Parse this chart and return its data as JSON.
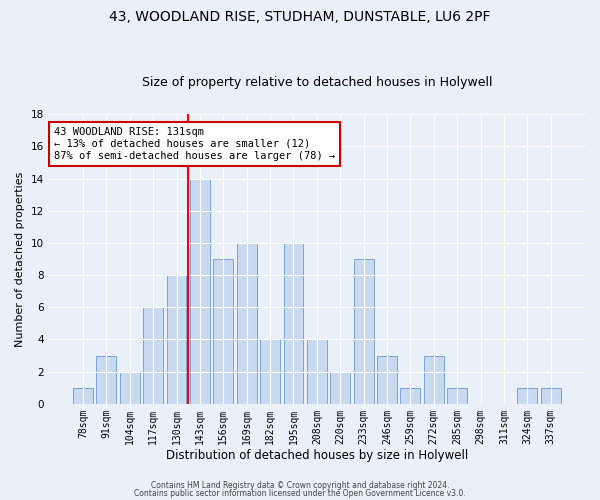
{
  "title1": "43, WOODLAND RISE, STUDHAM, DUNSTABLE, LU6 2PF",
  "title2": "Size of property relative to detached houses in Holywell",
  "xlabel": "Distribution of detached houses by size in Holywell",
  "ylabel": "Number of detached properties",
  "categories": [
    "78sqm",
    "91sqm",
    "104sqm",
    "117sqm",
    "130sqm",
    "143sqm",
    "156sqm",
    "169sqm",
    "182sqm",
    "195sqm",
    "208sqm",
    "220sqm",
    "233sqm",
    "246sqm",
    "259sqm",
    "272sqm",
    "285sqm",
    "298sqm",
    "311sqm",
    "324sqm",
    "337sqm"
  ],
  "values": [
    1,
    3,
    2,
    6,
    8,
    14,
    9,
    10,
    4,
    10,
    4,
    2,
    9,
    3,
    1,
    3,
    1,
    0,
    0,
    1,
    1
  ],
  "bar_color": "#c9d9f0",
  "bar_edge_color": "#7aa4d4",
  "red_line_index": 4.5,
  "annotation_text": "43 WOODLAND RISE: 131sqm\n← 13% of detached houses are smaller (12)\n87% of semi-detached houses are larger (78) →",
  "annotation_box_color": "white",
  "annotation_box_edge_color": "#cc0000",
  "ylim": [
    0,
    18
  ],
  "yticks": [
    0,
    2,
    4,
    6,
    8,
    10,
    12,
    14,
    16,
    18
  ],
  "footer1": "Contains HM Land Registry data © Crown copyright and database right 2024.",
  "footer2": "Contains public sector information licensed under the Open Government Licence v3.0.",
  "background_color": "#eaf0f8",
  "grid_color": "white",
  "title1_fontsize": 10,
  "title2_fontsize": 9,
  "tick_fontsize": 7,
  "ylabel_fontsize": 8,
  "xlabel_fontsize": 8.5,
  "annotation_fontsize": 7.5,
  "footer_fontsize": 5.5
}
